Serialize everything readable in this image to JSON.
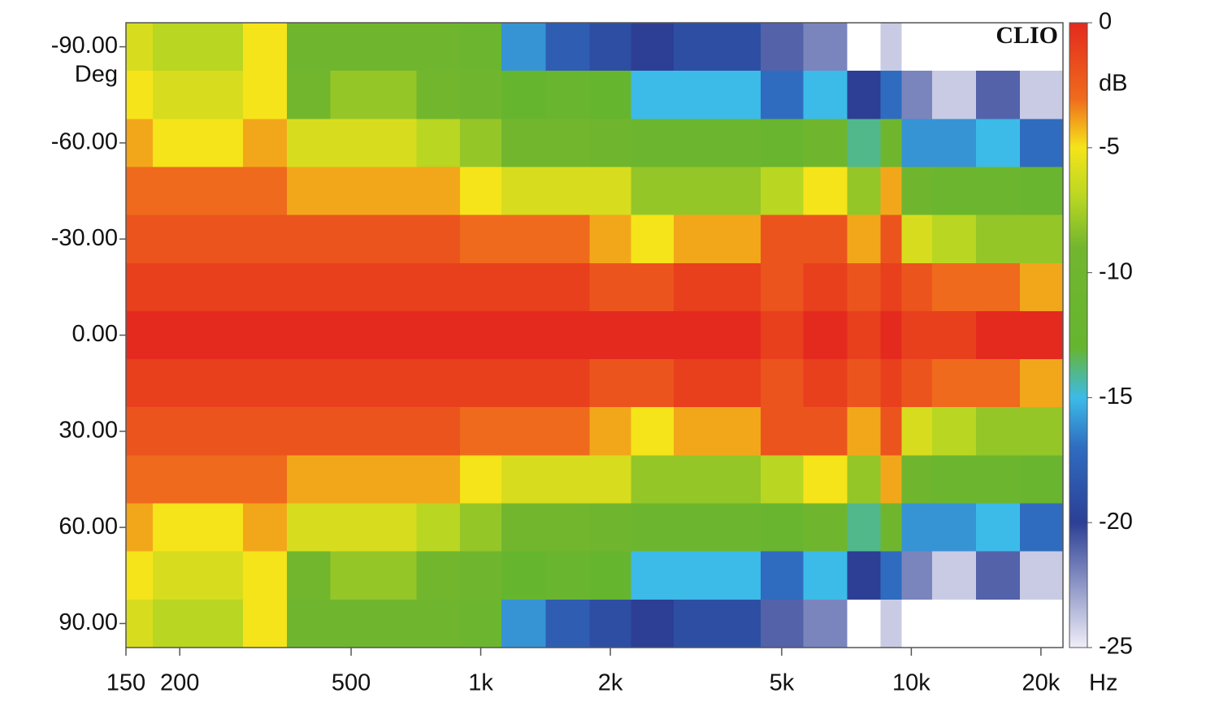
{
  "chart_data": {
    "type": "heatmap",
    "brand": "CLIO",
    "y_unit": "Deg",
    "x_unit": "Hz",
    "colorbar_label": "dB",
    "x": [
      150,
      200,
      250,
      315,
      400,
      500,
      630,
      800,
      1000,
      1250,
      1600,
      2000,
      2500,
      3150,
      4000,
      5000,
      6300,
      8000,
      9000,
      10000,
      12500,
      16000,
      20000
    ],
    "y": [
      -90,
      -75,
      -60,
      -45,
      -30,
      -15,
      0,
      15,
      30,
      45,
      60,
      75,
      90
    ],
    "z": [
      [
        -6,
        -7,
        -7,
        -5,
        -10,
        -10,
        -10,
        -10,
        -11,
        -16,
        -18,
        -19,
        -20,
        -19,
        -19,
        -21,
        -22,
        -26,
        -24,
        -28,
        -30,
        -30,
        -30
      ],
      [
        -5,
        -6,
        -6,
        -5,
        -9,
        -8,
        -8,
        -9,
        -10,
        -13,
        -12,
        -13,
        -15,
        -15,
        -15,
        -17,
        -15,
        -20,
        -17,
        -22,
        -24,
        -21,
        -24
      ],
      [
        -4,
        -5,
        -5,
        -4,
        -6,
        -6,
        -6,
        -7,
        -8,
        -9,
        -9,
        -10,
        -11,
        -11,
        -11,
        -12,
        -10,
        -14,
        -10,
        -16,
        -16,
        -15,
        -17
      ],
      [
        -3,
        -3,
        -3,
        -3,
        -4,
        -4,
        -4,
        -4,
        -5,
        -6,
        -6,
        -6,
        -8,
        -8,
        -8,
        -7,
        -5,
        -8,
        -4,
        -10,
        -11,
        -11,
        -12
      ],
      [
        -2,
        -2,
        -2,
        -2,
        -2,
        -2,
        -2,
        -2,
        -3,
        -3,
        -3,
        -4,
        -5,
        -4,
        -4,
        -2,
        -2,
        -4,
        -2,
        -6,
        -7,
        -8,
        -8
      ],
      [
        -1,
        -1,
        -1,
        -1,
        -1,
        -1,
        -1,
        -1,
        -1,
        -1,
        -1,
        -2,
        -2,
        -1,
        -1,
        -2,
        -1,
        -2,
        -1,
        -2,
        -3,
        -3,
        -4
      ],
      [
        0,
        0,
        0,
        0,
        0,
        0,
        0,
        0,
        0,
        0,
        0,
        0,
        0,
        0,
        0,
        -1,
        0,
        -1,
        0,
        -1,
        -1,
        0,
        0
      ],
      [
        -1,
        -1,
        -1,
        -1,
        -1,
        -1,
        -1,
        -1,
        -1,
        -1,
        -1,
        -2,
        -2,
        -1,
        -1,
        -2,
        -1,
        -2,
        -1,
        -2,
        -3,
        -3,
        -4
      ],
      [
        -2,
        -2,
        -2,
        -2,
        -2,
        -2,
        -2,
        -2,
        -3,
        -3,
        -3,
        -4,
        -5,
        -4,
        -4,
        -2,
        -2,
        -4,
        -2,
        -6,
        -7,
        -8,
        -8
      ],
      [
        -3,
        -3,
        -3,
        -3,
        -4,
        -4,
        -4,
        -4,
        -5,
        -6,
        -6,
        -6,
        -8,
        -8,
        -8,
        -7,
        -5,
        -8,
        -4,
        -10,
        -11,
        -11,
        -12
      ],
      [
        -4,
        -5,
        -5,
        -4,
        -6,
        -6,
        -6,
        -7,
        -8,
        -9,
        -9,
        -10,
        -11,
        -11,
        -11,
        -12,
        -10,
        -14,
        -10,
        -16,
        -16,
        -15,
        -17
      ],
      [
        -5,
        -6,
        -6,
        -5,
        -9,
        -8,
        -8,
        -9,
        -10,
        -13,
        -12,
        -13,
        -15,
        -15,
        -15,
        -17,
        -15,
        -20,
        -17,
        -22,
        -24,
        -21,
        -24
      ],
      [
        -6,
        -7,
        -7,
        -5,
        -10,
        -10,
        -10,
        -10,
        -11,
        -16,
        -18,
        -19,
        -20,
        -19,
        -19,
        -21,
        -22,
        -26,
        -24,
        -28,
        -30,
        -30,
        -30
      ]
    ],
    "xscale": "log",
    "xlim": [
      150,
      22500
    ],
    "xticks": [
      150,
      200,
      500,
      {
        "value": 1000,
        "label": "1k"
      },
      {
        "value": 2000,
        "label": "2k"
      },
      {
        "value": 5000,
        "label": "5k"
      },
      {
        "value": 10000,
        "label": "10k"
      },
      {
        "value": 20000,
        "label": "20k"
      }
    ],
    "ylim": [
      -97.5,
      97.5
    ],
    "yticks": [
      {
        "value": -90,
        "label": "-90.00"
      },
      {
        "value": -60,
        "label": "-60.00"
      },
      {
        "value": -30,
        "label": "-30.00"
      },
      {
        "value": 0,
        "label": "0.00"
      },
      {
        "value": 30,
        "label": "30.00"
      },
      {
        "value": 60,
        "label": "60.00"
      },
      {
        "value": 90,
        "label": "90.00"
      }
    ],
    "clim": [
      0,
      -25
    ],
    "cticks": [
      0,
      -5,
      -10,
      -15,
      -20,
      -25
    ],
    "colorscale": [
      [
        0,
        "#e42a1e"
      ],
      [
        -3,
        "#ef6a1c"
      ],
      [
        -5,
        "#f5e41a"
      ],
      [
        -7,
        "#b8d622"
      ],
      [
        -9,
        "#72b62e"
      ],
      [
        -13,
        "#66b52f"
      ],
      [
        -15,
        "#3cbbe8"
      ],
      [
        -17,
        "#2f6cc0"
      ],
      [
        -20,
        "#2c3f95"
      ],
      [
        -25,
        "#f0eef8"
      ]
    ],
    "below_color": "#ffffff"
  }
}
